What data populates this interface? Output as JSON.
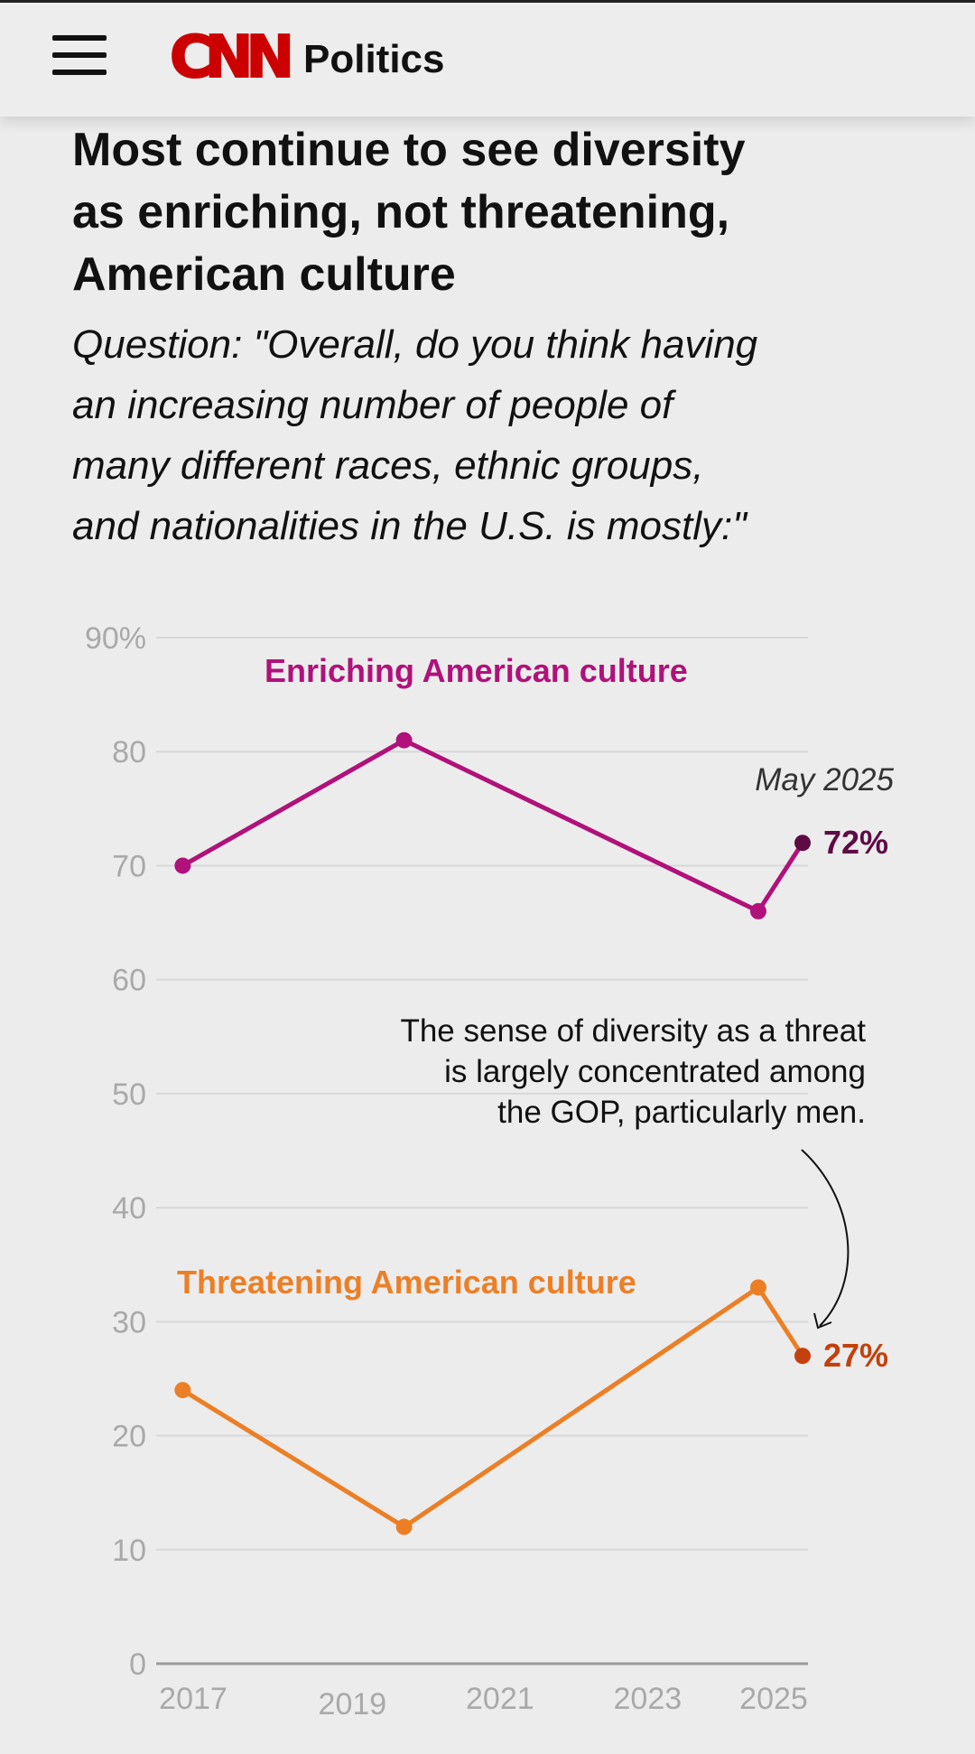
{
  "header": {
    "logo_text": "CNN",
    "section": "Politics",
    "menu_icon": "hamburger-menu-icon",
    "logo_color": "#cc0000"
  },
  "article": {
    "title_lines": [
      "Most continue to see diversity",
      "as enriching, not threatening,",
      "American culture"
    ],
    "subtitle_lines": [
      "Question: \"Overall, do you think having",
      "an increasing number of people of",
      "many different races, ethnic groups,",
      "and nationalities in the U.S. is mostly:\""
    ]
  },
  "chart_data": {
    "type": "line",
    "x_ticks": [
      "2017",
      "2019",
      "2021",
      "2023",
      "2025"
    ],
    "y_ticks": [
      "90%",
      "80",
      "70",
      "60",
      "50",
      "40",
      "30",
      "20",
      "10",
      "0"
    ],
    "ylim": [
      0,
      90
    ],
    "xlim": [
      2017,
      2025.6
    ],
    "grid": true,
    "series": [
      {
        "name": "Enriching American culture",
        "color": "#b0117a",
        "end_color": "#5e0b44",
        "points": [
          {
            "x": 2017.2,
            "y": 70
          },
          {
            "x": 2020.2,
            "y": 81
          },
          {
            "x": 2025.0,
            "y": 66
          },
          {
            "x": 2025.6,
            "y": 72
          }
        ],
        "end_label": "72%"
      },
      {
        "name": "Threatening American culture",
        "color": "#ec7f26",
        "end_color": "#c2410c",
        "points": [
          {
            "x": 2017.2,
            "y": 24
          },
          {
            "x": 2020.2,
            "y": 12
          },
          {
            "x": 2025.0,
            "y": 33
          },
          {
            "x": 2025.6,
            "y": 27
          }
        ],
        "end_label": "27%"
      }
    ],
    "annotations": {
      "date_label": "May 2025",
      "note_lines": [
        "The sense of diversity as a threat",
        "is largely concentrated among",
        "the GOP, particularly men."
      ]
    }
  }
}
